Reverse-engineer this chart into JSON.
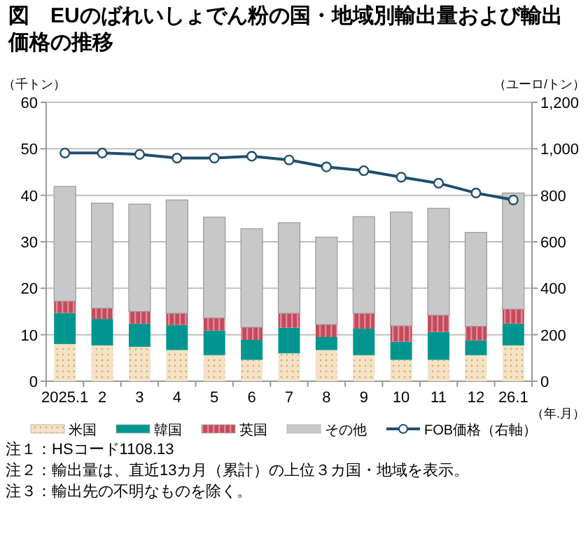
{
  "chart_data": {
    "type": "bar",
    "stacked": true,
    "title": "図　EUのばれいしょでん粉の国・地域別輸出量および輸出価格の推移",
    "ylabel": "（千トン）",
    "y2label": "（ユーロ/トン）",
    "xlabel": "（年.月）",
    "categories": [
      "2025.1",
      "2",
      "3",
      "4",
      "5",
      "6",
      "7",
      "8",
      "9",
      "10",
      "11",
      "12",
      "26.1"
    ],
    "series": [
      {
        "name": "米国",
        "color": "#f3e2c4",
        "values": [
          8.0,
          7.7,
          7.4,
          6.7,
          5.6,
          4.6,
          6.0,
          6.7,
          5.6,
          4.6,
          4.6,
          5.6,
          7.7
        ]
      },
      {
        "name": "韓国",
        "color": "#00968f",
        "values": [
          6.7,
          5.7,
          5.0,
          5.4,
          5.3,
          4.3,
          5.5,
          2.8,
          5.7,
          3.9,
          6.0,
          3.2,
          4.7
        ]
      },
      {
        "name": "英国",
        "color": "#c44a5c",
        "values": [
          2.5,
          2.3,
          2.6,
          2.5,
          2.7,
          2.7,
          3.1,
          2.7,
          3.3,
          3.4,
          3.6,
          3.0,
          3.1
        ]
      },
      {
        "name": "その他",
        "color": "#c8c8c8",
        "values": [
          24.7,
          22.6,
          23.1,
          24.4,
          21.7,
          21.2,
          19.5,
          18.8,
          20.8,
          24.5,
          23.0,
          20.2,
          25.0
        ]
      },
      {
        "name": "FOB価格（右軸）",
        "type": "line",
        "axis": "y2",
        "marker": "circle",
        "color": "#1f4e6e",
        "values": [
          982,
          982,
          976,
          960,
          960,
          968,
          952,
          922,
          906,
          878,
          852,
          810,
          780
        ]
      }
    ],
    "ylim": [
      0,
      60
    ],
    "yticks": [
      0,
      10,
      20,
      30,
      40,
      50,
      60
    ],
    "y2lim": [
      0,
      1200
    ],
    "y2ticks": [
      0,
      {
        "value": 200,
        "label": "200"
      },
      {
        "value": 400,
        "label": "400"
      },
      {
        "value": 600,
        "label": "600"
      },
      {
        "value": 800,
        "label": "800"
      },
      {
        "value": 1000,
        "label": "1,000"
      },
      {
        "value": 1200,
        "label": "1,200"
      }
    ],
    "grid": "y",
    "legend": "bottom",
    "annotations": [
      "注１：HSコード1108.13",
      "注２：輸出量は、直近13カ月（累計）の上位３カ国・地域を表示。",
      "注３：輸出先の不明なものを除く。"
    ]
  }
}
